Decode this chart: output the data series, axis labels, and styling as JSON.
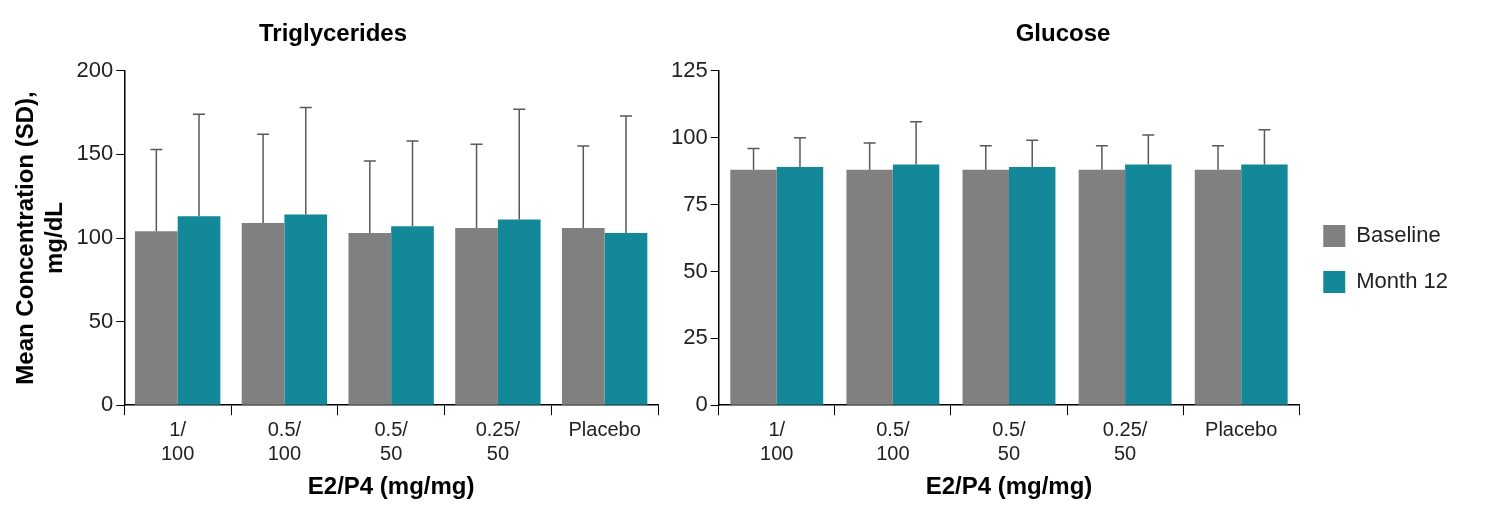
{
  "chart_data": [
    {
      "type": "bar",
      "title": "Triglycerides",
      "xlabel": "E2/P4 (mg/mg)",
      "ylabel": "Mean Concentration (SD), mg/dL",
      "categories": [
        "1/ 100",
        "0.5/ 100",
        "0.5/ 50",
        "0.25/ 50",
        "Placebo"
      ],
      "series": [
        {
          "color": "#808080",
          "values": [
            104,
            109,
            103,
            106,
            106
          ],
          "errors": [
            [
              104,
              153
            ],
            [
              109,
              162
            ],
            [
              103,
              146
            ],
            [
              106,
              156
            ],
            [
              106,
              155
            ]
          ]
        },
        {
          "color": "#138898",
          "values": [
            113,
            114,
            107,
            111,
            103
          ],
          "errors": [
            [
              113,
              174
            ],
            [
              114,
              178
            ],
            [
              107,
              158
            ],
            [
              111,
              177
            ],
            [
              103,
              173
            ]
          ]
        }
      ],
      "ylim": [
        0,
        200
      ],
      "yticks": [
        0,
        50,
        100,
        150,
        200
      ],
      "grid": false,
      "legend": false
    },
    {
      "type": "bar",
      "title": "Glucose",
      "xlabel": "E2/P4 (mg/mg)",
      "categories": [
        "1/ 100",
        "0.5/ 100",
        "0.5/ 50",
        "0.25/ 50",
        "Placebo"
      ],
      "series": [
        {
          "name": "Baseline",
          "color": "#808080",
          "values": [
            88,
            88,
            88,
            88,
            88
          ],
          "errors": [
            [
              88,
              96
            ],
            [
              88,
              98
            ],
            [
              88,
              97
            ],
            [
              88,
              97
            ],
            [
              88,
              97
            ]
          ]
        },
        {
          "name": "Month 12",
          "color": "#138898",
          "values": [
            89,
            90,
            89,
            90,
            90
          ],
          "errors": [
            [
              89,
              100
            ],
            [
              90,
              106
            ],
            [
              89,
              99
            ],
            [
              90,
              101
            ],
            [
              90,
              103
            ]
          ]
        }
      ],
      "ylim": [
        0,
        125
      ],
      "yticks": [
        0,
        25,
        50,
        75,
        100,
        125
      ],
      "grid": false,
      "legend": "right"
    }
  ]
}
